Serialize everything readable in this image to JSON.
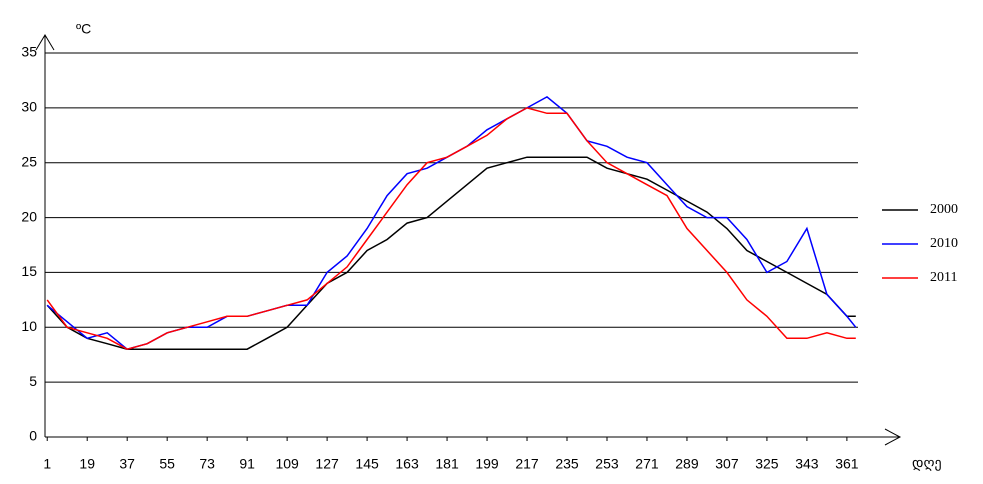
{
  "chart_data": {
    "type": "line",
    "y_label": "ºC",
    "x_label": "დღე",
    "x": [
      1,
      10,
      19,
      28,
      37,
      46,
      55,
      64,
      73,
      82,
      91,
      100,
      109,
      118,
      127,
      136,
      145,
      154,
      163,
      172,
      181,
      190,
      199,
      208,
      217,
      226,
      235,
      244,
      253,
      262,
      271,
      280,
      289,
      298,
      307,
      316,
      325,
      334,
      343,
      352,
      361,
      365
    ],
    "series": [
      {
        "name": "2000",
        "color": "#000000",
        "values": [
          12,
          10,
          9,
          8.5,
          8,
          8,
          8,
          8,
          8,
          8,
          8,
          9,
          10,
          12,
          14,
          15,
          17,
          18,
          19.5,
          20,
          21.5,
          23,
          24.5,
          25,
          25.5,
          25.5,
          25.5,
          25.5,
          24.5,
          24,
          23.5,
          22.5,
          21.5,
          20.5,
          19,
          17,
          16,
          15,
          14,
          13,
          11,
          11
        ]
      },
      {
        "name": "2010",
        "color": "#0000ff",
        "values": [
          12,
          10.5,
          9,
          9.5,
          8,
          8.5,
          9.5,
          10,
          10,
          11,
          11,
          11.5,
          12,
          12,
          15,
          16.5,
          19,
          22,
          24,
          24.5,
          25.5,
          26.5,
          28,
          29,
          30,
          31,
          29.5,
          27,
          26.5,
          25.5,
          25,
          23,
          21,
          20,
          20,
          18,
          15,
          16,
          19,
          13,
          11,
          10
        ]
      },
      {
        "name": "2011",
        "color": "#ff0000",
        "values": [
          12.5,
          10,
          9.5,
          9,
          8,
          8.5,
          9.5,
          10,
          10.5,
          11,
          11,
          11.5,
          12,
          12.5,
          14,
          15.5,
          18,
          20.5,
          23,
          25,
          25.5,
          26.5,
          27.5,
          29,
          30,
          29.5,
          29.5,
          27,
          25,
          24,
          23,
          22,
          19,
          17,
          15,
          12.5,
          11,
          9,
          9,
          9.5,
          9,
          9
        ]
      }
    ],
    "xlim": [
      0,
      366
    ],
    "xticks": [
      1,
      19,
      37,
      55,
      73,
      91,
      109,
      127,
      145,
      163,
      181,
      199,
      217,
      235,
      253,
      271,
      289,
      307,
      325,
      343,
      361
    ],
    "ylim": [
      0,
      35
    ],
    "yticks": [
      0,
      5,
      10,
      15,
      20,
      25,
      30,
      35
    ],
    "grid": true,
    "legend": "right"
  }
}
